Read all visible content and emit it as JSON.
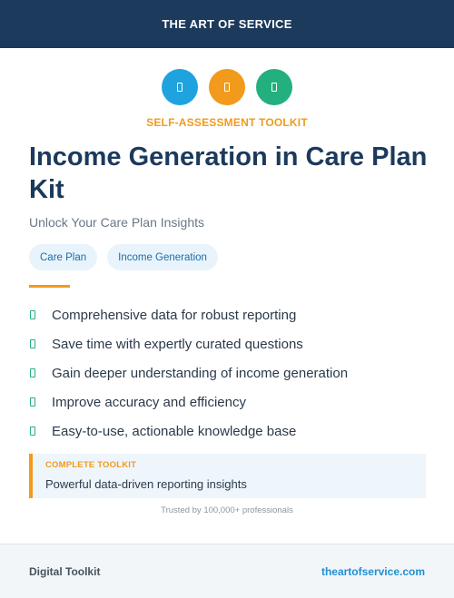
{
  "header": {
    "brand": "THE ART OF SERVICE"
  },
  "icons": [
    {
      "name": "document-icon",
      "color": "#1ea3de"
    },
    {
      "name": "document-icon",
      "color": "#f29a1c"
    },
    {
      "name": "document-icon",
      "color": "#23b07e"
    }
  ],
  "eyebrow": "SELF-ASSESSMENT TOOLKIT",
  "title": "Income Generation in Care Plan Kit",
  "subtitle": "Unlock Your Care Plan Insights",
  "tags": [
    "Care Plan",
    "Income Generation"
  ],
  "features": [
    "Comprehensive data for robust reporting",
    "Save time with expertly curated questions",
    "Gain deeper understanding of income generation",
    "Improve accuracy and efficiency",
    "Easy-to-use, actionable knowledge base"
  ],
  "callout": {
    "label": "COMPLETE TOOLKIT",
    "text": "Powerful data-driven reporting insights"
  },
  "trusted": "Trusted by 100,000+ professionals",
  "footer": {
    "left": "Digital Toolkit",
    "right": "theartofservice.com"
  },
  "colors": {
    "header_bg": "#1b3a5c",
    "accent_orange": "#f29a1c",
    "accent_blue": "#1ea3de",
    "accent_green": "#23b07e"
  }
}
